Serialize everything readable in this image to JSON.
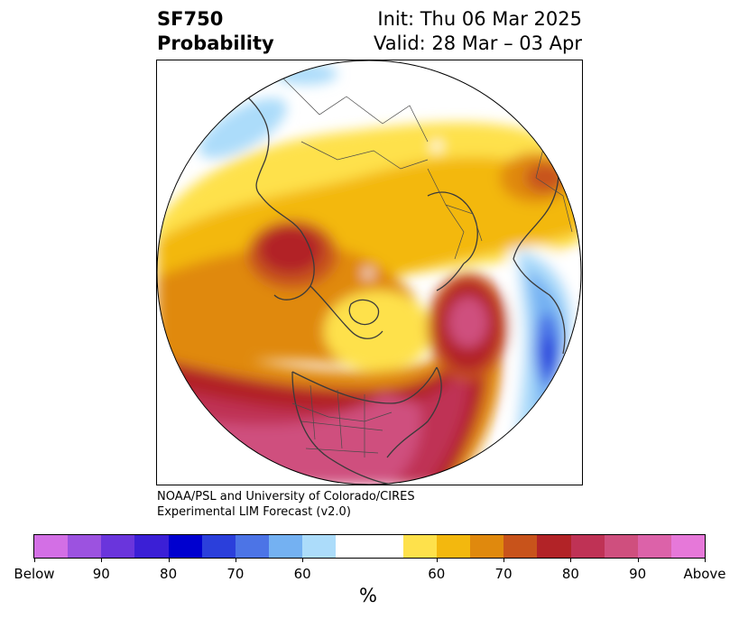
{
  "header": {
    "title_line1": "SF750",
    "title_line2": "Probability",
    "init_text": "Init: Thu 06 Mar 2025",
    "valid_text": "Valid: 28 Mar – 03 Apr"
  },
  "credit": {
    "line1": "NOAA/PSL and University of Colorado/CIRES",
    "line2": "Experimental LIM Forecast (v2.0)"
  },
  "map": {
    "projection": "north-polar-stereographic",
    "boundary": "circular",
    "features": [
      "coastlines",
      "country-borders",
      "us-state-borders"
    ]
  },
  "colorbar": {
    "unit_label": "%",
    "colors": [
      "#d36fe5",
      "#9c52e0",
      "#6a35dc",
      "#3b1fd6",
      "#0000cf",
      "#2b3fdb",
      "#4c74e6",
      "#74b1f2",
      "#acdcfa",
      "#ffffff",
      "#ffffff",
      "#fee14b",
      "#f3b80e",
      "#e0890d",
      "#c8531b",
      "#b22327",
      "#bf3255",
      "#cf4f7e",
      "#dc62a9",
      "#e678d9"
    ],
    "tick_labels": [
      "Below",
      "90",
      "80",
      "70",
      "60",
      "60",
      "70",
      "80",
      "90",
      "Above"
    ]
  },
  "legend_palette": {
    "below_strong": "#3b1fd6",
    "below_light": "#acdcfa",
    "above_light": "#fee14b",
    "above_mid": "#e0890d",
    "above_strong": "#b22327",
    "above_max": "#cf4f7e"
  }
}
